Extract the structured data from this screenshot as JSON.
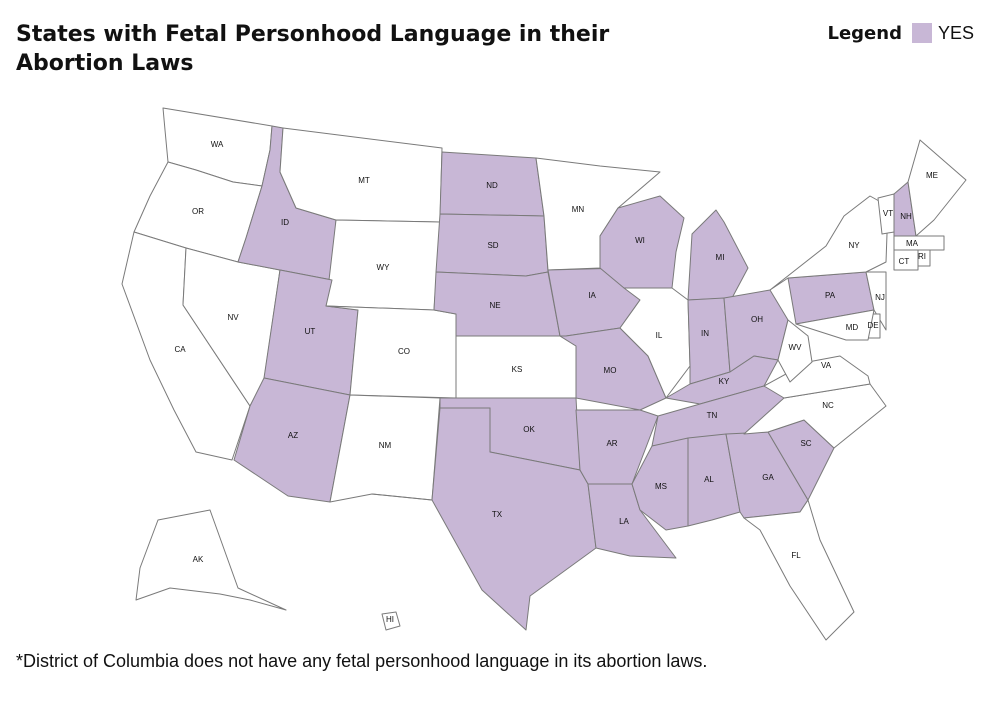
{
  "title": "States with Fetal Personhood Language in their Abortion Laws",
  "legend": {
    "title": "Legend",
    "label": "YES"
  },
  "colors": {
    "yes": "#c8b7d6",
    "no": "#ffffff",
    "border": "#7a7a7a"
  },
  "footnote": "*District of Columbia does not have any fetal personhood language in its abortion laws.",
  "states": [
    {
      "abbr": "WA",
      "yes": false
    },
    {
      "abbr": "OR",
      "yes": false
    },
    {
      "abbr": "CA",
      "yes": false
    },
    {
      "abbr": "NV",
      "yes": false
    },
    {
      "abbr": "ID",
      "yes": true
    },
    {
      "abbr": "MT",
      "yes": false
    },
    {
      "abbr": "WY",
      "yes": false
    },
    {
      "abbr": "UT",
      "yes": true
    },
    {
      "abbr": "AZ",
      "yes": true
    },
    {
      "abbr": "CO",
      "yes": false
    },
    {
      "abbr": "NM",
      "yes": false
    },
    {
      "abbr": "ND",
      "yes": true
    },
    {
      "abbr": "SD",
      "yes": true
    },
    {
      "abbr": "NE",
      "yes": true
    },
    {
      "abbr": "KS",
      "yes": false
    },
    {
      "abbr": "OK",
      "yes": true
    },
    {
      "abbr": "TX",
      "yes": true
    },
    {
      "abbr": "MN",
      "yes": false
    },
    {
      "abbr": "IA",
      "yes": true
    },
    {
      "abbr": "MO",
      "yes": true
    },
    {
      "abbr": "AR",
      "yes": true
    },
    {
      "abbr": "LA",
      "yes": true
    },
    {
      "abbr": "WI",
      "yes": true
    },
    {
      "abbr": "IL",
      "yes": false
    },
    {
      "abbr": "MI",
      "yes": true
    },
    {
      "abbr": "IN",
      "yes": true
    },
    {
      "abbr": "OH",
      "yes": true
    },
    {
      "abbr": "KY",
      "yes": true
    },
    {
      "abbr": "TN",
      "yes": true
    },
    {
      "abbr": "MS",
      "yes": true
    },
    {
      "abbr": "AL",
      "yes": true
    },
    {
      "abbr": "GA",
      "yes": true
    },
    {
      "abbr": "SC",
      "yes": true
    },
    {
      "abbr": "NC",
      "yes": false
    },
    {
      "abbr": "VA",
      "yes": false
    },
    {
      "abbr": "WV",
      "yes": false
    },
    {
      "abbr": "FL",
      "yes": false
    },
    {
      "abbr": "PA",
      "yes": true
    },
    {
      "abbr": "NY",
      "yes": false
    },
    {
      "abbr": "NJ",
      "yes": false
    },
    {
      "abbr": "DE",
      "yes": false
    },
    {
      "abbr": "MD",
      "yes": false
    },
    {
      "abbr": "VT",
      "yes": false
    },
    {
      "abbr": "NH",
      "yes": true
    },
    {
      "abbr": "ME",
      "yes": false
    },
    {
      "abbr": "MA",
      "yes": false
    },
    {
      "abbr": "CT",
      "yes": false
    },
    {
      "abbr": "RI",
      "yes": false
    },
    {
      "abbr": "AK",
      "yes": false
    },
    {
      "abbr": "HI",
      "yes": false
    }
  ]
}
